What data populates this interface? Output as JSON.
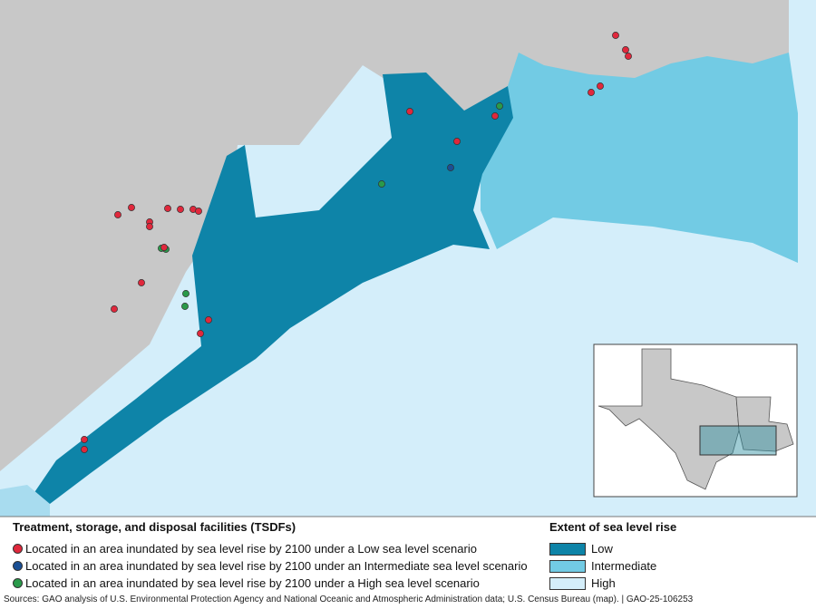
{
  "colors": {
    "land": "#c8c8c8",
    "low": "#0e84a8",
    "intermediate": "#72cbe4",
    "high": "#d4eefa",
    "red": "#e0283c",
    "blue": "#1a4f94",
    "green": "#2a9a4a"
  },
  "facilities_legend": {
    "title": "Treatment, storage, and disposal facilities (TSDFs)",
    "items": [
      {
        "label": "Located in an area inundated by sea level rise by 2100 under a Low sea level scenario",
        "color": "#e0283c"
      },
      {
        "label": "Located in an area inundated by sea level rise by 2100 under an Intermediate sea level scenario",
        "color": "#1a4f94"
      },
      {
        "label": "Located in an area inundated by sea level rise by 2100 under a High sea level scenario",
        "color": "#2a9a4a"
      }
    ]
  },
  "slr_legend": {
    "title": "Extent of sea level rise",
    "items": [
      {
        "label": "Low",
        "color": "#0e84a8"
      },
      {
        "label": "Intermediate",
        "color": "#72cbe4"
      },
      {
        "label": "High",
        "color": "#d4eefa"
      }
    ]
  },
  "source": "Sources: GAO analysis of U.S. Environmental Protection Agency and National Oceanic and Atmospheric Administration data; U.S. Census Bureau (map).  |  GAO-25-106253"
}
